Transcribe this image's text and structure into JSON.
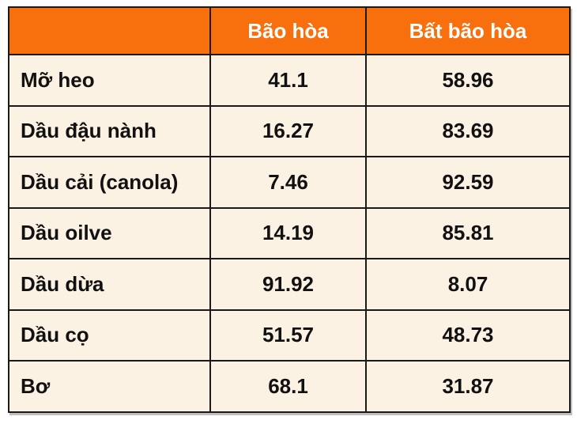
{
  "colors": {
    "header_bg": "#F7700D",
    "header_text": "#FFFFFF",
    "body_bg": "#FCF2E4",
    "border": "#1A1A1A",
    "body_text": "#111111",
    "page_bg": "#FFFFFF"
  },
  "table": {
    "columns": [
      "",
      "Bão hòa",
      "Bất bão hòa"
    ],
    "rows": [
      {
        "label": "Mỡ heo",
        "saturated": "41.1",
        "unsaturated": "58.96"
      },
      {
        "label": "Dầu đậu nành",
        "saturated": "16.27",
        "unsaturated": "83.69"
      },
      {
        "label": "Dầu cải (canola)",
        "saturated": "7.46",
        "unsaturated": "92.59"
      },
      {
        "label": "Dầu oilve",
        "saturated": "14.19",
        "unsaturated": "85.81"
      },
      {
        "label": "Dầu dừa",
        "saturated": "91.92",
        "unsaturated": "8.07"
      },
      {
        "label": "Dầu cọ",
        "saturated": "51.57",
        "unsaturated": "48.73"
      },
      {
        "label": "Bơ",
        "saturated": "68.1",
        "unsaturated": "31.87"
      }
    ]
  },
  "chart_data": {
    "type": "table",
    "title": "",
    "columns": [
      "",
      "Bão hòa",
      "Bất bão hòa"
    ],
    "categories": [
      "Mỡ heo",
      "Dầu đậu nành",
      "Dầu cải (canola)",
      "Dầu oilve",
      "Dầu dừa",
      "Dầu cọ",
      "Bơ"
    ],
    "series": [
      {
        "name": "Bão hòa",
        "values": [
          41.1,
          16.27,
          7.46,
          14.19,
          91.92,
          51.57,
          68.1
        ]
      },
      {
        "name": "Bất bão hòa",
        "values": [
          58.96,
          83.69,
          92.59,
          85.81,
          8.07,
          48.73,
          31.87
        ]
      }
    ]
  }
}
